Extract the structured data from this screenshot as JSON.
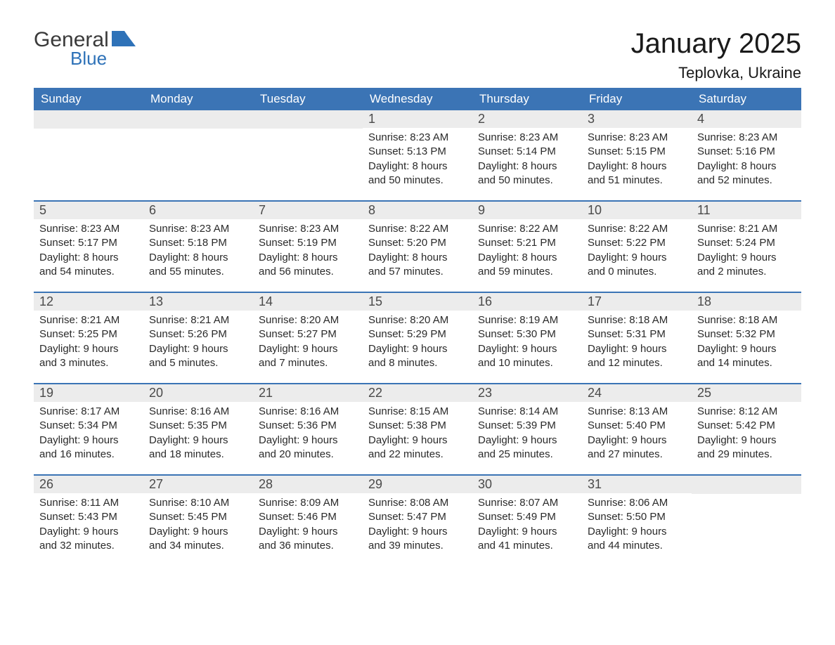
{
  "logo": {
    "general": "General",
    "blue": "Blue",
    "flag_color": "#2e72b8"
  },
  "title": "January 2025",
  "location": "Teplovka, Ukraine",
  "colors": {
    "header_bg": "#3b74b5",
    "header_text": "#ffffff",
    "day_band_bg": "#ececec",
    "day_text": "#4a4a4a",
    "body_text": "#2a2a2a",
    "rule": "#3b74b5"
  },
  "weekdays": [
    "Sunday",
    "Monday",
    "Tuesday",
    "Wednesday",
    "Thursday",
    "Friday",
    "Saturday"
  ],
  "weeks": [
    [
      null,
      null,
      null,
      {
        "n": "1",
        "sunrise": "8:23 AM",
        "sunset": "5:13 PM",
        "dl1": "Daylight: 8 hours",
        "dl2": "and 50 minutes."
      },
      {
        "n": "2",
        "sunrise": "8:23 AM",
        "sunset": "5:14 PM",
        "dl1": "Daylight: 8 hours",
        "dl2": "and 50 minutes."
      },
      {
        "n": "3",
        "sunrise": "8:23 AM",
        "sunset": "5:15 PM",
        "dl1": "Daylight: 8 hours",
        "dl2": "and 51 minutes."
      },
      {
        "n": "4",
        "sunrise": "8:23 AM",
        "sunset": "5:16 PM",
        "dl1": "Daylight: 8 hours",
        "dl2": "and 52 minutes."
      }
    ],
    [
      {
        "n": "5",
        "sunrise": "8:23 AM",
        "sunset": "5:17 PM",
        "dl1": "Daylight: 8 hours",
        "dl2": "and 54 minutes."
      },
      {
        "n": "6",
        "sunrise": "8:23 AM",
        "sunset": "5:18 PM",
        "dl1": "Daylight: 8 hours",
        "dl2": "and 55 minutes."
      },
      {
        "n": "7",
        "sunrise": "8:23 AM",
        "sunset": "5:19 PM",
        "dl1": "Daylight: 8 hours",
        "dl2": "and 56 minutes."
      },
      {
        "n": "8",
        "sunrise": "8:22 AM",
        "sunset": "5:20 PM",
        "dl1": "Daylight: 8 hours",
        "dl2": "and 57 minutes."
      },
      {
        "n": "9",
        "sunrise": "8:22 AM",
        "sunset": "5:21 PM",
        "dl1": "Daylight: 8 hours",
        "dl2": "and 59 minutes."
      },
      {
        "n": "10",
        "sunrise": "8:22 AM",
        "sunset": "5:22 PM",
        "dl1": "Daylight: 9 hours",
        "dl2": "and 0 minutes."
      },
      {
        "n": "11",
        "sunrise": "8:21 AM",
        "sunset": "5:24 PM",
        "dl1": "Daylight: 9 hours",
        "dl2": "and 2 minutes."
      }
    ],
    [
      {
        "n": "12",
        "sunrise": "8:21 AM",
        "sunset": "5:25 PM",
        "dl1": "Daylight: 9 hours",
        "dl2": "and 3 minutes."
      },
      {
        "n": "13",
        "sunrise": "8:21 AM",
        "sunset": "5:26 PM",
        "dl1": "Daylight: 9 hours",
        "dl2": "and 5 minutes."
      },
      {
        "n": "14",
        "sunrise": "8:20 AM",
        "sunset": "5:27 PM",
        "dl1": "Daylight: 9 hours",
        "dl2": "and 7 minutes."
      },
      {
        "n": "15",
        "sunrise": "8:20 AM",
        "sunset": "5:29 PM",
        "dl1": "Daylight: 9 hours",
        "dl2": "and 8 minutes."
      },
      {
        "n": "16",
        "sunrise": "8:19 AM",
        "sunset": "5:30 PM",
        "dl1": "Daylight: 9 hours",
        "dl2": "and 10 minutes."
      },
      {
        "n": "17",
        "sunrise": "8:18 AM",
        "sunset": "5:31 PM",
        "dl1": "Daylight: 9 hours",
        "dl2": "and 12 minutes."
      },
      {
        "n": "18",
        "sunrise": "8:18 AM",
        "sunset": "5:32 PM",
        "dl1": "Daylight: 9 hours",
        "dl2": "and 14 minutes."
      }
    ],
    [
      {
        "n": "19",
        "sunrise": "8:17 AM",
        "sunset": "5:34 PM",
        "dl1": "Daylight: 9 hours",
        "dl2": "and 16 minutes."
      },
      {
        "n": "20",
        "sunrise": "8:16 AM",
        "sunset": "5:35 PM",
        "dl1": "Daylight: 9 hours",
        "dl2": "and 18 minutes."
      },
      {
        "n": "21",
        "sunrise": "8:16 AM",
        "sunset": "5:36 PM",
        "dl1": "Daylight: 9 hours",
        "dl2": "and 20 minutes."
      },
      {
        "n": "22",
        "sunrise": "8:15 AM",
        "sunset": "5:38 PM",
        "dl1": "Daylight: 9 hours",
        "dl2": "and 22 minutes."
      },
      {
        "n": "23",
        "sunrise": "8:14 AM",
        "sunset": "5:39 PM",
        "dl1": "Daylight: 9 hours",
        "dl2": "and 25 minutes."
      },
      {
        "n": "24",
        "sunrise": "8:13 AM",
        "sunset": "5:40 PM",
        "dl1": "Daylight: 9 hours",
        "dl2": "and 27 minutes."
      },
      {
        "n": "25",
        "sunrise": "8:12 AM",
        "sunset": "5:42 PM",
        "dl1": "Daylight: 9 hours",
        "dl2": "and 29 minutes."
      }
    ],
    [
      {
        "n": "26",
        "sunrise": "8:11 AM",
        "sunset": "5:43 PM",
        "dl1": "Daylight: 9 hours",
        "dl2": "and 32 minutes."
      },
      {
        "n": "27",
        "sunrise": "8:10 AM",
        "sunset": "5:45 PM",
        "dl1": "Daylight: 9 hours",
        "dl2": "and 34 minutes."
      },
      {
        "n": "28",
        "sunrise": "8:09 AM",
        "sunset": "5:46 PM",
        "dl1": "Daylight: 9 hours",
        "dl2": "and 36 minutes."
      },
      {
        "n": "29",
        "sunrise": "8:08 AM",
        "sunset": "5:47 PM",
        "dl1": "Daylight: 9 hours",
        "dl2": "and 39 minutes."
      },
      {
        "n": "30",
        "sunrise": "8:07 AM",
        "sunset": "5:49 PM",
        "dl1": "Daylight: 9 hours",
        "dl2": "and 41 minutes."
      },
      {
        "n": "31",
        "sunrise": "8:06 AM",
        "sunset": "5:50 PM",
        "dl1": "Daylight: 9 hours",
        "dl2": "and 44 minutes."
      },
      null
    ]
  ],
  "labels": {
    "sunrise_prefix": "Sunrise: ",
    "sunset_prefix": "Sunset: "
  }
}
